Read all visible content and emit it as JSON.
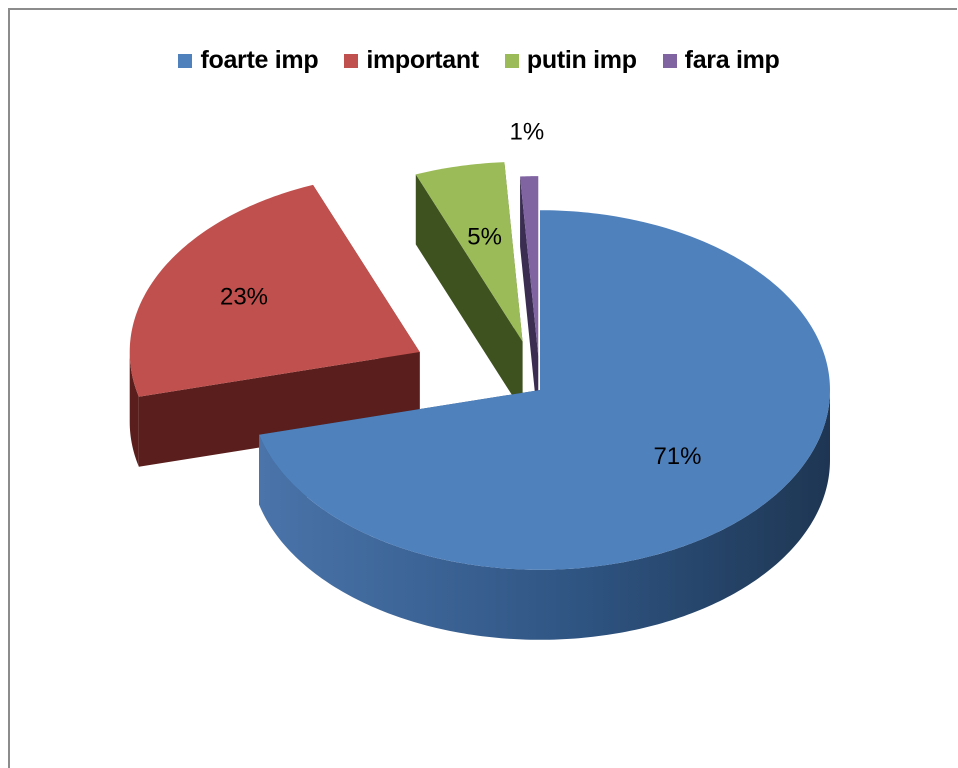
{
  "chart_data": {
    "type": "pie",
    "title": "",
    "categories": [
      "foarte imp",
      "important",
      "putin imp",
      "fara imp"
    ],
    "values": [
      71,
      23,
      5,
      1
    ],
    "value_labels": [
      "71%",
      "23%",
      "5%",
      "1%"
    ],
    "legend_position": "top",
    "exploded": true,
    "three_d": true,
    "colors": {
      "top": [
        "#4f81bd",
        "#c0504d",
        "#9bbb59",
        "#8064a2"
      ],
      "side": [
        "#2b4a70",
        "#5a1f1d",
        "#3e5220",
        "#3b2d52"
      ]
    }
  }
}
